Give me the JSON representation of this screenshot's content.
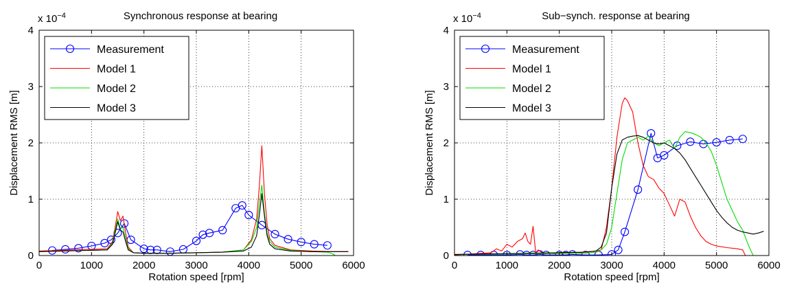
{
  "chart_data": [
    {
      "type": "line",
      "title": "Synchronous response at bearing",
      "xlabel": "Rotation speed [rpm]",
      "ylabel": "Displacement RMS [m]",
      "exponent": {
        "base": "x 10",
        "power": "−4"
      },
      "xlim": [
        0,
        6000
      ],
      "ylim": [
        0,
        4
      ],
      "xticks": [
        "0",
        "1000",
        "2000",
        "3000",
        "4000",
        "5000",
        "6000"
      ],
      "yticks": [
        "0",
        "1",
        "2",
        "3",
        "4"
      ],
      "grid": true,
      "legend_position": "top-left",
      "series": [
        {
          "name": "Measurement",
          "color": "#0000ff",
          "marker": "circle",
          "x": [
            250,
            500,
            750,
            1000,
            1250,
            1375,
            1500,
            1625,
            1750,
            2000,
            2125,
            2250,
            2500,
            2750,
            3000,
            3125,
            3250,
            3500,
            3750,
            3875,
            4000,
            4250,
            4500,
            4750,
            5000,
            5250,
            5500
          ],
          "y": [
            0.09,
            0.11,
            0.13,
            0.17,
            0.22,
            0.28,
            0.4,
            0.57,
            0.28,
            0.12,
            0.1,
            0.1,
            0.07,
            0.11,
            0.26,
            0.37,
            0.4,
            0.45,
            0.84,
            0.89,
            0.72,
            0.54,
            0.38,
            0.29,
            0.24,
            0.2,
            0.18
          ]
        },
        {
          "name": "Model 1",
          "color": "#ff0000",
          "marker": "none",
          "x": [
            0,
            1300,
            1400,
            1450,
            1500,
            1550,
            1600,
            1650,
            1700,
            1800,
            2000,
            2500,
            3000,
            3500,
            3900,
            4050,
            4150,
            4200,
            4250,
            4300,
            4350,
            4400,
            4500,
            4800,
            5200,
            5600,
            5900
          ],
          "y": [
            0.08,
            0.12,
            0.25,
            0.5,
            0.78,
            0.62,
            0.7,
            0.4,
            0.15,
            0.05,
            0.04,
            0.04,
            0.05,
            0.06,
            0.1,
            0.28,
            0.65,
            1.2,
            1.95,
            1.1,
            0.55,
            0.3,
            0.18,
            0.1,
            0.08,
            0.07,
            0.07
          ]
        },
        {
          "name": "Model 2",
          "color": "#00dd00",
          "marker": "none",
          "x": [
            0,
            1300,
            1400,
            1450,
            1500,
            1550,
            1600,
            1650,
            1700,
            1800,
            2000,
            2500,
            3000,
            3500,
            3900,
            4050,
            4150,
            4200,
            4250,
            4300,
            4350,
            4400,
            4500,
            4800,
            5200,
            5500,
            5600,
            5650
          ],
          "y": [
            0.07,
            0.1,
            0.22,
            0.45,
            0.65,
            0.48,
            0.5,
            0.3,
            0.12,
            0.05,
            0.04,
            0.04,
            0.05,
            0.06,
            0.1,
            0.25,
            0.5,
            0.9,
            1.25,
            0.75,
            0.4,
            0.25,
            0.15,
            0.09,
            0.07,
            0.06,
            0.03,
            0.0
          ]
        },
        {
          "name": "Model 3",
          "color": "#000000",
          "marker": "none",
          "x": [
            0,
            1300,
            1400,
            1450,
            1500,
            1550,
            1600,
            1650,
            1700,
            1800,
            2000,
            2500,
            3000,
            3500,
            3900,
            4050,
            4150,
            4200,
            4250,
            4300,
            4350,
            4400,
            4500,
            4800,
            5200,
            5600,
            5900
          ],
          "y": [
            0.07,
            0.1,
            0.2,
            0.4,
            0.6,
            0.45,
            0.42,
            0.25,
            0.1,
            0.05,
            0.04,
            0.04,
            0.05,
            0.06,
            0.08,
            0.15,
            0.35,
            0.7,
            1.1,
            0.7,
            0.35,
            0.2,
            0.12,
            0.08,
            0.07,
            0.07,
            0.07
          ]
        }
      ]
    },
    {
      "type": "line",
      "title": "Sub−synch. response at bearing",
      "xlabel": "Rotation speed [rpm]",
      "ylabel": "Displacement RMS [m]",
      "exponent": {
        "base": "x 10",
        "power": "−4"
      },
      "xlim": [
        0,
        6000
      ],
      "ylim": [
        0,
        4
      ],
      "xticks": [
        "0",
        "1000",
        "2000",
        "3000",
        "4000",
        "5000",
        "6000"
      ],
      "yticks": [
        "0",
        "1",
        "2",
        "3",
        "4"
      ],
      "grid": true,
      "legend_position": "top-left",
      "series": [
        {
          "name": "Measurement",
          "color": "#0000ff",
          "marker": "circle",
          "x": [
            250,
            500,
            750,
            1000,
            1250,
            1375,
            1500,
            1625,
            1750,
            2000,
            2125,
            2250,
            2500,
            2750,
            3000,
            3125,
            3250,
            3500,
            3750,
            3875,
            4000,
            4250,
            4500,
            4750,
            5000,
            5250,
            5500
          ],
          "y": [
            0.01,
            0.01,
            0.01,
            0.01,
            0.02,
            0.01,
            0.01,
            0.02,
            0.01,
            0.01,
            0.01,
            0.02,
            0.01,
            0.01,
            0.02,
            0.1,
            0.42,
            1.17,
            2.17,
            1.73,
            1.78,
            1.95,
            2.02,
            1.98,
            2.01,
            2.05,
            2.07
          ]
        },
        {
          "name": "Model 1",
          "color": "#ff0000",
          "marker": "none",
          "x": [
            0,
            700,
            800,
            900,
            1000,
            1100,
            1200,
            1300,
            1350,
            1400,
            1450,
            1500,
            1550,
            1600,
            1700,
            1800,
            1900,
            2000,
            2100,
            2200,
            2300,
            2400,
            2500,
            2600,
            2700,
            2800,
            2900,
            3000,
            3100,
            3200,
            3250,
            3300,
            3400,
            3500,
            3600,
            3700,
            3800,
            3900,
            4000,
            4100,
            4200,
            4300,
            4400,
            4500,
            4600,
            4700,
            4800,
            4900,
            5000,
            5200,
            5400,
            5500,
            5550
          ],
          "y": [
            0.01,
            0.05,
            0.12,
            0.08,
            0.2,
            0.15,
            0.25,
            0.3,
            0.4,
            0.25,
            0.2,
            0.52,
            0.05,
            0.1,
            0.03,
            0.05,
            0.03,
            0.05,
            0.06,
            0.05,
            0.06,
            0.05,
            0.07,
            0.07,
            0.08,
            0.1,
            0.5,
            1.2,
            2.1,
            2.7,
            2.8,
            2.75,
            2.55,
            2.0,
            1.6,
            1.4,
            1.35,
            1.2,
            1.1,
            0.9,
            0.7,
            1.0,
            0.95,
            0.7,
            0.5,
            0.35,
            0.25,
            0.2,
            0.17,
            0.14,
            0.12,
            0.1,
            0.0
          ]
        },
        {
          "name": "Model 2",
          "color": "#00dd00",
          "marker": "none",
          "x": [
            0,
            2500,
            2700,
            2800,
            2900,
            3000,
            3100,
            3200,
            3300,
            3400,
            3500,
            3600,
            3700,
            3800,
            3900,
            4000,
            4100,
            4200,
            4300,
            4400,
            4500,
            4600,
            4700,
            4800,
            4900,
            5000,
            5100,
            5200,
            5300,
            5400,
            5500,
            5600,
            5700
          ],
          "y": [
            0.02,
            0.04,
            0.06,
            0.1,
            0.2,
            0.5,
            1.1,
            1.7,
            2.0,
            2.05,
            2.1,
            2.05,
            2.12,
            2.0,
            1.95,
            2.0,
            2.05,
            1.9,
            2.1,
            2.2,
            2.18,
            2.15,
            2.1,
            2.0,
            1.85,
            1.6,
            1.3,
            1.0,
            0.8,
            0.6,
            0.45,
            0.2,
            0.0
          ]
        },
        {
          "name": "Model 3",
          "color": "#000000",
          "marker": "none",
          "x": [
            0,
            2000,
            2500,
            2700,
            2800,
            2900,
            3000,
            3100,
            3200,
            3300,
            3400,
            3500,
            3600,
            3700,
            3800,
            3900,
            4000,
            4100,
            4200,
            4300,
            4400,
            4500,
            4600,
            4700,
            4800,
            4900,
            5000,
            5100,
            5200,
            5300,
            5400,
            5500,
            5600,
            5700,
            5800,
            5900
          ],
          "y": [
            0.02,
            0.05,
            0.06,
            0.08,
            0.15,
            0.4,
            1.2,
            1.8,
            2.05,
            2.1,
            2.12,
            2.13,
            2.1,
            2.05,
            2.0,
            1.98,
            2.0,
            1.95,
            1.9,
            1.82,
            1.7,
            1.55,
            1.4,
            1.25,
            1.1,
            0.95,
            0.8,
            0.68,
            0.58,
            0.5,
            0.45,
            0.42,
            0.4,
            0.38,
            0.4,
            0.43
          ]
        }
      ]
    }
  ]
}
